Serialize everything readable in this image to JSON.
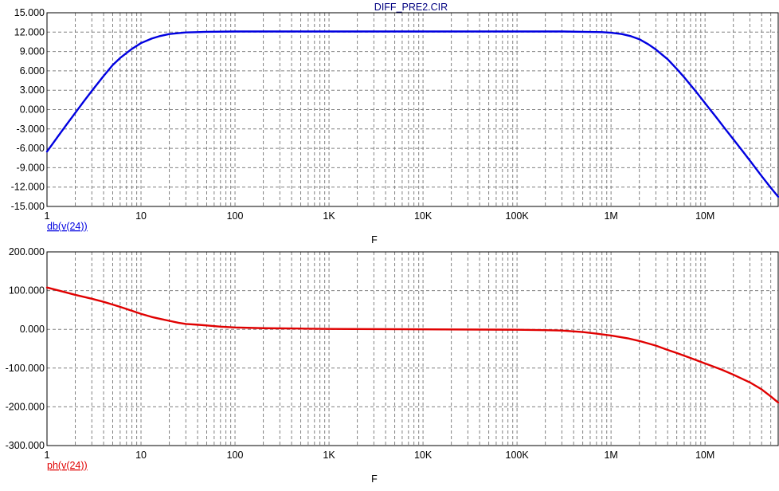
{
  "title": "DIFF_PRE2.CIR",
  "colors": {
    "magnitude": "#0000e0",
    "phase": "#e00000",
    "title": "#000080",
    "grid": "#808080",
    "frame": "#000000",
    "background": "#ffffff"
  },
  "chart_data": [
    {
      "type": "line",
      "title": "DIFF_PRE2.CIR",
      "xlabel": "F",
      "ylabel": "db(v(24))",
      "x_scale": "log",
      "xlim": [
        1,
        60000000
      ],
      "ylim": [
        -15,
        15
      ],
      "grid": true,
      "x_ticks": [
        {
          "value": 1,
          "label": "1"
        },
        {
          "value": 10,
          "label": "10"
        },
        {
          "value": 100,
          "label": "100"
        },
        {
          "value": 1000,
          "label": "1K"
        },
        {
          "value": 10000,
          "label": "10K"
        },
        {
          "value": 100000,
          "label": "100K"
        },
        {
          "value": 1000000,
          "label": "1M"
        },
        {
          "value": 10000000,
          "label": "10M"
        }
      ],
      "y_ticks": [
        {
          "value": 15,
          "label": "15.000"
        },
        {
          "value": 12,
          "label": "12.000"
        },
        {
          "value": 9,
          "label": "9.000"
        },
        {
          "value": 6,
          "label": "6.000"
        },
        {
          "value": 3,
          "label": "3.000"
        },
        {
          "value": 0,
          "label": "0.000"
        },
        {
          "value": -3,
          "label": "-3.000"
        },
        {
          "value": -6,
          "label": "-6.000"
        },
        {
          "value": -9,
          "label": "-9.000"
        },
        {
          "value": -12,
          "label": "-12.000"
        },
        {
          "value": -15,
          "label": "-15.000"
        }
      ],
      "series": [
        {
          "name": "db(v(24))",
          "x": [
            1,
            1.3,
            1.6,
            2,
            2.5,
            3,
            4,
            5,
            6,
            8,
            10,
            13,
            16,
            20,
            25,
            30,
            40,
            50,
            100,
            1000,
            10000,
            100000,
            300000,
            500000,
            800000,
            1000000,
            1300000,
            1600000,
            2000000,
            2500000,
            3000000,
            4000000,
            5000000,
            6000000,
            8000000,
            10000000,
            13000000,
            16000000,
            20000000,
            25000000,
            30000000,
            40000000,
            50000000,
            60000000
          ],
          "y": [
            -6.5,
            -4.2,
            -2.4,
            -0.5,
            1.4,
            2.9,
            5.2,
            6.9,
            8.0,
            9.4,
            10.3,
            11.0,
            11.4,
            11.7,
            11.85,
            11.95,
            12.0,
            12.05,
            12.1,
            12.1,
            12.1,
            12.1,
            12.1,
            12.05,
            12.0,
            11.9,
            11.7,
            11.4,
            10.9,
            10.1,
            9.3,
            7.8,
            6.3,
            5.0,
            2.8,
            1.0,
            -1.1,
            -2.8,
            -4.6,
            -6.4,
            -7.9,
            -10.3,
            -12.1,
            -13.5
          ]
        }
      ]
    },
    {
      "type": "line",
      "xlabel": "F",
      "ylabel": "ph(v(24))",
      "x_scale": "log",
      "xlim": [
        1,
        60000000
      ],
      "ylim": [
        -300,
        200
      ],
      "grid": true,
      "x_ticks": [
        {
          "value": 1,
          "label": "1"
        },
        {
          "value": 10,
          "label": "10"
        },
        {
          "value": 100,
          "label": "100"
        },
        {
          "value": 1000,
          "label": "1K"
        },
        {
          "value": 10000,
          "label": "10K"
        },
        {
          "value": 100000,
          "label": "100K"
        },
        {
          "value": 1000000,
          "label": "1M"
        },
        {
          "value": 10000000,
          "label": "10M"
        }
      ],
      "y_ticks": [
        {
          "value": 200,
          "label": "200.000"
        },
        {
          "value": 100,
          "label": "100.000"
        },
        {
          "value": 0,
          "label": "0.000"
        },
        {
          "value": -100,
          "label": "-100.000"
        },
        {
          "value": -200,
          "label": "-200.000"
        },
        {
          "value": -300,
          "label": "-300.000"
        }
      ],
      "series": [
        {
          "name": "ph(v(24))",
          "x": [
            1,
            1.5,
            2,
            3,
            4,
            5,
            6,
            8,
            10,
            13,
            16,
            20,
            25,
            30,
            40,
            50,
            70,
            100,
            200,
            500,
            1000,
            10000,
            100000,
            200000,
            300000,
            500000,
            700000,
            1000000,
            1500000,
            2000000,
            3000000,
            4000000,
            5000000,
            7000000,
            10000000,
            15000000,
            20000000,
            30000000,
            40000000,
            50000000,
            60000000
          ],
          "y": [
            108,
            97,
            89,
            79,
            71,
            64,
            58,
            48,
            40,
            32,
            27,
            22,
            17,
            14,
            12,
            10,
            7,
            5,
            3,
            2,
            1,
            0,
            -1,
            -2,
            -3,
            -7,
            -11,
            -16,
            -23,
            -30,
            -42,
            -53,
            -61,
            -74,
            -88,
            -104,
            -117,
            -137,
            -155,
            -173,
            -189
          ]
        }
      ]
    }
  ]
}
